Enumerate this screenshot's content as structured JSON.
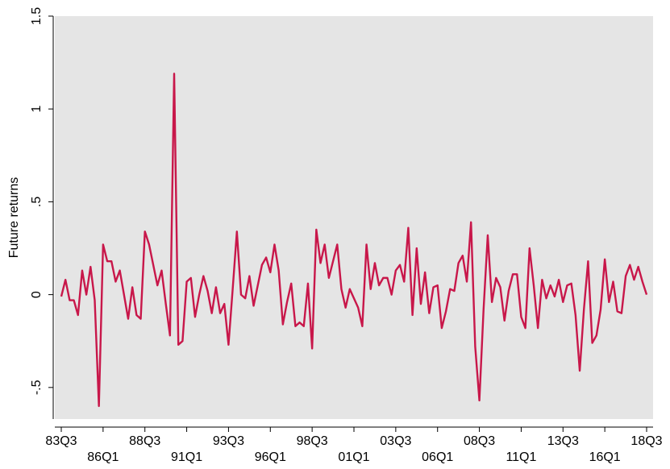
{
  "chart_data": {
    "type": "line",
    "y_title": "Future returns",
    "categories": [
      "83Q3",
      null,
      null,
      null,
      null,
      null,
      null,
      null,
      null,
      null,
      "86Q1",
      null,
      null,
      null,
      null,
      null,
      null,
      null,
      null,
      null,
      "88Q3",
      null,
      null,
      null,
      null,
      null,
      null,
      null,
      null,
      null,
      "91Q1",
      null,
      null,
      null,
      null,
      null,
      null,
      null,
      null,
      null,
      "93Q3",
      null,
      null,
      null,
      null,
      null,
      null,
      null,
      null,
      null,
      "96Q1",
      null,
      null,
      null,
      null,
      null,
      null,
      null,
      null,
      null,
      "98Q3",
      null,
      null,
      null,
      null,
      null,
      null,
      null,
      null,
      null,
      "01Q1",
      null,
      null,
      null,
      null,
      null,
      null,
      null,
      null,
      null,
      "03Q3",
      null,
      null,
      null,
      null,
      null,
      null,
      null,
      null,
      null,
      "06Q1",
      null,
      null,
      null,
      null,
      null,
      null,
      null,
      null,
      null,
      "08Q3",
      null,
      null,
      null,
      null,
      null,
      null,
      null,
      null,
      null,
      "11Q1",
      null,
      null,
      null,
      null,
      null,
      null,
      null,
      null,
      null,
      "13Q3",
      null,
      null,
      null,
      null,
      null,
      null,
      null,
      null,
      null,
      "16Q1",
      null,
      null,
      null,
      null,
      null,
      null,
      null,
      null,
      null,
      "18Q3"
    ],
    "values": [
      -0.01,
      0.08,
      -0.03,
      -0.03,
      -0.11,
      0.13,
      0.0,
      0.15,
      -0.03,
      -0.6,
      0.27,
      0.18,
      0.18,
      0.07,
      0.13,
      0.0,
      -0.13,
      0.04,
      -0.11,
      -0.13,
      0.34,
      0.27,
      0.16,
      0.05,
      0.13,
      -0.05,
      -0.22,
      1.19,
      -0.27,
      -0.25,
      0.07,
      0.09,
      -0.12,
      0.0,
      0.1,
      0.02,
      -0.1,
      0.04,
      -0.1,
      -0.05,
      -0.27,
      0.03,
      0.34,
      0.0,
      -0.02,
      0.1,
      -0.06,
      0.05,
      0.16,
      0.2,
      0.12,
      0.27,
      0.13,
      -0.16,
      -0.04,
      0.06,
      -0.17,
      -0.15,
      -0.17,
      0.06,
      -0.29,
      0.35,
      0.17,
      0.27,
      0.09,
      0.18,
      0.27,
      0.03,
      -0.07,
      0.03,
      -0.02,
      -0.07,
      -0.17,
      0.27,
      0.03,
      0.17,
      0.05,
      0.09,
      0.09,
      0.0,
      0.13,
      0.16,
      0.07,
      0.36,
      -0.11,
      0.25,
      -0.05,
      0.12,
      -0.1,
      0.04,
      0.05,
      -0.18,
      -0.09,
      0.03,
      0.02,
      0.17,
      0.21,
      0.07,
      0.39,
      -0.28,
      -0.57,
      -0.08,
      0.32,
      -0.04,
      0.09,
      0.04,
      -0.14,
      0.02,
      0.11,
      0.11,
      -0.12,
      -0.18,
      0.25,
      0.05,
      -0.18,
      0.08,
      -0.02,
      0.05,
      -0.01,
      0.08,
      -0.04,
      0.05,
      0.06,
      -0.11,
      -0.41,
      -0.08,
      0.18,
      -0.26,
      -0.22,
      -0.08,
      0.19,
      -0.04,
      0.07,
      -0.09,
      -0.1,
      0.1,
      0.16,
      0.08,
      0.15,
      0.07,
      0.0
    ],
    "color": "#c8174a",
    "ylim": [
      -0.67,
      1.5
    ],
    "yticks": [
      {
        "value": -0.5,
        "label": "-.5"
      },
      0,
      {
        "value": 0.5,
        "label": ".5"
      },
      1,
      1.5
    ],
    "grid": false
  }
}
